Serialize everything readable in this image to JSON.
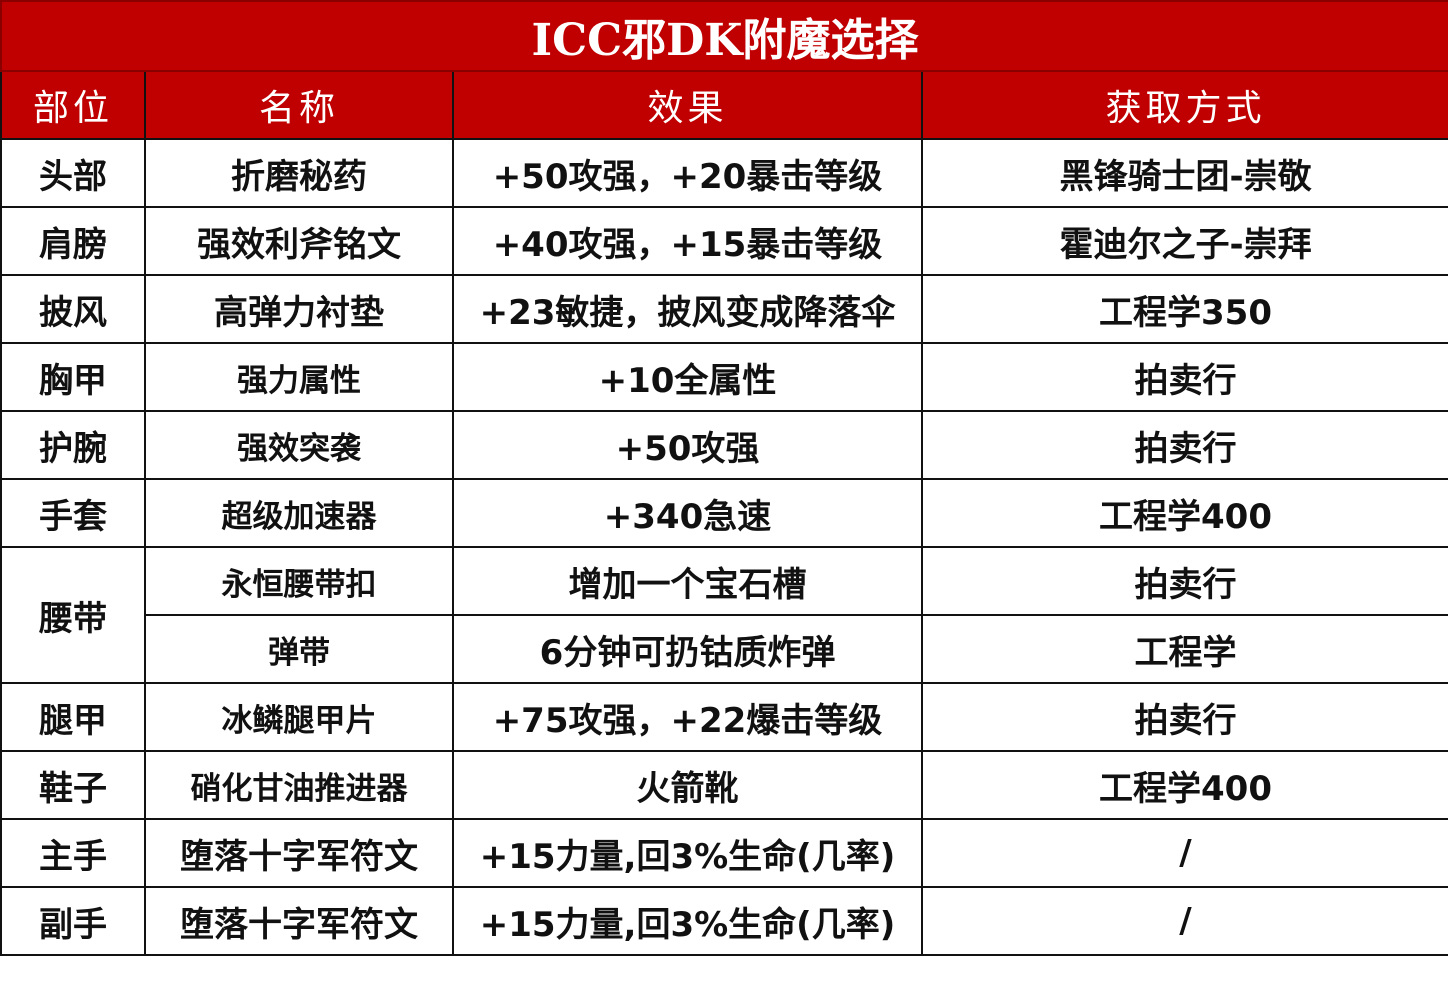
{
  "title": "ICC邪DK附魔选择",
  "headers": [
    "部位",
    "名称",
    "效果",
    "获取方式"
  ],
  "rows": [
    {
      "part": "头部",
      "name": "折磨秘药",
      "effect": "+50攻强，+20暴击等级",
      "source": "黑锋骑士团-崇敬"
    },
    {
      "part": "肩膀",
      "name": "强效利斧铭文",
      "effect": "+40攻强，+15暴击等级",
      "source": "霍迪尔之子-崇拜"
    },
    {
      "part": "披风",
      "name": "高弹力衬垫",
      "effect": "+23敏捷，披风变成降落伞",
      "source": "工程学350"
    },
    {
      "part": "胸甲",
      "name": "强力属性",
      "effect": "+10全属性",
      "source": "拍卖行"
    },
    {
      "part": "护腕",
      "name": "强效突袭",
      "effect": "+50攻强",
      "source": "拍卖行"
    },
    {
      "part": "手套",
      "name": "超级加速器",
      "effect": "+340急速",
      "source": "工程学400"
    },
    {
      "part": "腰带",
      "name": "永恒腰带扣",
      "effect": "增加一个宝石槽",
      "source": "拍卖行"
    },
    {
      "part": "",
      "name": "弹带",
      "effect": "6分钟可扔钴质炸弹",
      "source": "工程学"
    },
    {
      "part": "腿甲",
      "name": "冰鳞腿甲片",
      "effect": "+75攻强，+22爆击等级",
      "source": "拍卖行"
    },
    {
      "part": "鞋子",
      "name": "硝化甘油推进器",
      "effect": "火箭靴",
      "source": "工程学400"
    },
    {
      "part": "主手",
      "name": "堕落十字军符文",
      "effect": "+15力量,回3%生命(几率)",
      "source": "/"
    },
    {
      "part": "副手",
      "name": "堕落十字军符文",
      "effect": "+15力量,回3%生命(几率)",
      "source": "/"
    }
  ],
  "colors": {
    "header_bg": "#c00000",
    "header_text": "#ffffff",
    "border": "#111111"
  }
}
